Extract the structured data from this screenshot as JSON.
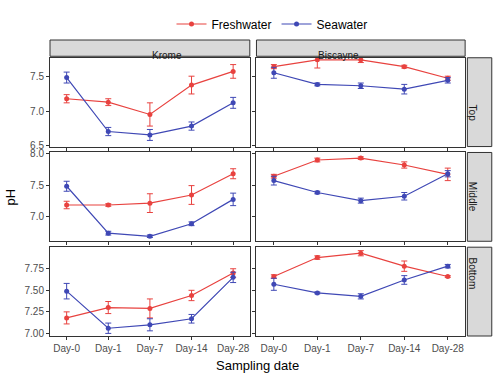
{
  "chart_data": {
    "type": "line",
    "x_label": "Sampling date",
    "y_label": "pH",
    "categories": [
      "Day-0",
      "Day-1",
      "Day-7",
      "Day-14",
      "Day-28"
    ],
    "columns": [
      "Krome",
      "Biscayne"
    ],
    "rows": [
      {
        "label": "Top",
        "ylim": [
          6.48,
          7.78
        ],
        "yticks": [
          6.5,
          {
            "value": 7,
            "label": "7.0"
          },
          7.5
        ]
      },
      {
        "label": "Middle",
        "ylim": [
          6.6,
          8.02
        ],
        "yticks": [
          {
            "value": 7,
            "label": "7.0"
          },
          7.5,
          {
            "value": 8,
            "label": "8.0"
          }
        ]
      },
      {
        "label": "Bottom",
        "ylim": [
          6.97,
          8.0
        ],
        "yticks": [
          {
            "value": 7,
            "label": "7.00"
          },
          7.25,
          {
            "value": 7.5,
            "label": "7.50"
          },
          7.75
        ]
      }
    ],
    "series": [
      {
        "name": "Freshwater",
        "color": "#e8423f",
        "marker": "circle"
      },
      {
        "name": "Seawater",
        "color": "#3f48b5",
        "marker": "circle"
      }
    ],
    "panels": [
      {
        "column": "Krome",
        "row": "Top",
        "values": [
          [
            7.18,
            7.13,
            6.95,
            7.38,
            7.58
          ],
          [
            7.49,
            6.7,
            6.65,
            6.78,
            7.12
          ]
        ],
        "errors": [
          [
            0.06,
            0.05,
            0.17,
            0.13,
            0.1
          ],
          [
            0.08,
            0.06,
            0.08,
            0.06,
            0.08
          ]
        ]
      },
      {
        "column": "Biscayne",
        "row": "Top",
        "values": [
          [
            7.65,
            7.75,
            7.75,
            7.65,
            7.48
          ],
          [
            7.56,
            7.39,
            7.37,
            7.32,
            7.45
          ]
        ],
        "errors": [
          [
            0.03,
            0.12,
            0.04,
            0.02,
            0.03
          ],
          [
            0.08,
            0.02,
            0.04,
            0.07,
            0.04
          ]
        ]
      },
      {
        "column": "Krome",
        "row": "Middle",
        "values": [
          [
            7.18,
            7.18,
            7.21,
            7.34,
            7.68
          ],
          [
            7.48,
            6.73,
            6.68,
            6.88,
            7.27
          ]
        ],
        "errors": [
          [
            0.06,
            0.02,
            0.15,
            0.15,
            0.08
          ],
          [
            0.08,
            0.03,
            0.02,
            0.03,
            0.1
          ]
        ]
      },
      {
        "column": "Biscayne",
        "row": "Middle",
        "values": [
          [
            7.64,
            7.9,
            7.93,
            7.82,
            7.67
          ],
          [
            7.57,
            7.38,
            7.25,
            7.32,
            7.68
          ]
        ],
        "errors": [
          [
            0.03,
            0.03,
            0.02,
            0.05,
            0.1
          ],
          [
            0.07,
            0.02,
            0.04,
            0.06,
            0.05
          ]
        ]
      },
      {
        "column": "Krome",
        "row": "Bottom",
        "values": [
          [
            7.18,
            7.3,
            7.29,
            7.44,
            7.7
          ],
          [
            7.49,
            7.06,
            7.1,
            7.17,
            7.65
          ]
        ],
        "errors": [
          [
            0.07,
            0.07,
            0.11,
            0.06,
            0.05
          ],
          [
            0.09,
            0.06,
            0.07,
            0.05,
            0.06
          ]
        ]
      },
      {
        "column": "Biscayne",
        "row": "Bottom",
        "values": [
          [
            7.66,
            7.88,
            7.93,
            7.78,
            7.66
          ],
          [
            7.57,
            7.47,
            7.43,
            7.62,
            7.78
          ]
        ],
        "errors": [
          [
            0.02,
            0.02,
            0.03,
            0.06,
            0.01
          ],
          [
            0.07,
            0.01,
            0.03,
            0.05,
            0.02
          ]
        ]
      }
    ],
    "legend": "top",
    "grid": false
  }
}
